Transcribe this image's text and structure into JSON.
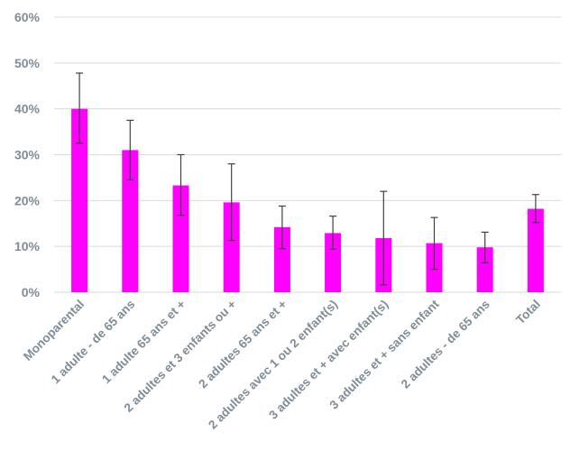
{
  "chart_data": {
    "type": "bar",
    "title": "",
    "xlabel": "",
    "ylabel": "",
    "ylim": [
      0,
      60
    ],
    "y_ticks": [
      0,
      10,
      20,
      30,
      40,
      50,
      60
    ],
    "y_tick_format": "%",
    "grid": true,
    "legend": "none",
    "colors": {
      "bar": "#ff00ff",
      "error_bar": "#404040",
      "grid": "#d9d9d9",
      "label": "#7f8c96"
    },
    "categories": [
      "Monoparental",
      "1 adulte - de 65 ans",
      "1 adulte 65 ans et +",
      "2 adultes et 3 enfants ou +",
      "2 adultes 65 ans et +",
      "2 adultes avec 1 ou 2 enfant(s)",
      "3 adultes et + avec enfant(s)",
      "3 adultes et + sans enfant",
      "2 adultes - de 65 ans",
      "Total"
    ],
    "values": [
      40.0,
      31.0,
      23.3,
      19.6,
      14.2,
      12.9,
      11.8,
      10.7,
      9.8,
      18.2
    ],
    "error_low": [
      32.5,
      24.5,
      16.8,
      11.3,
      9.5,
      9.4,
      1.6,
      5.0,
      6.4,
      15.2
    ],
    "error_high": [
      47.8,
      37.5,
      30.0,
      28.0,
      18.8,
      16.6,
      22.0,
      16.3,
      13.1,
      21.3
    ]
  }
}
